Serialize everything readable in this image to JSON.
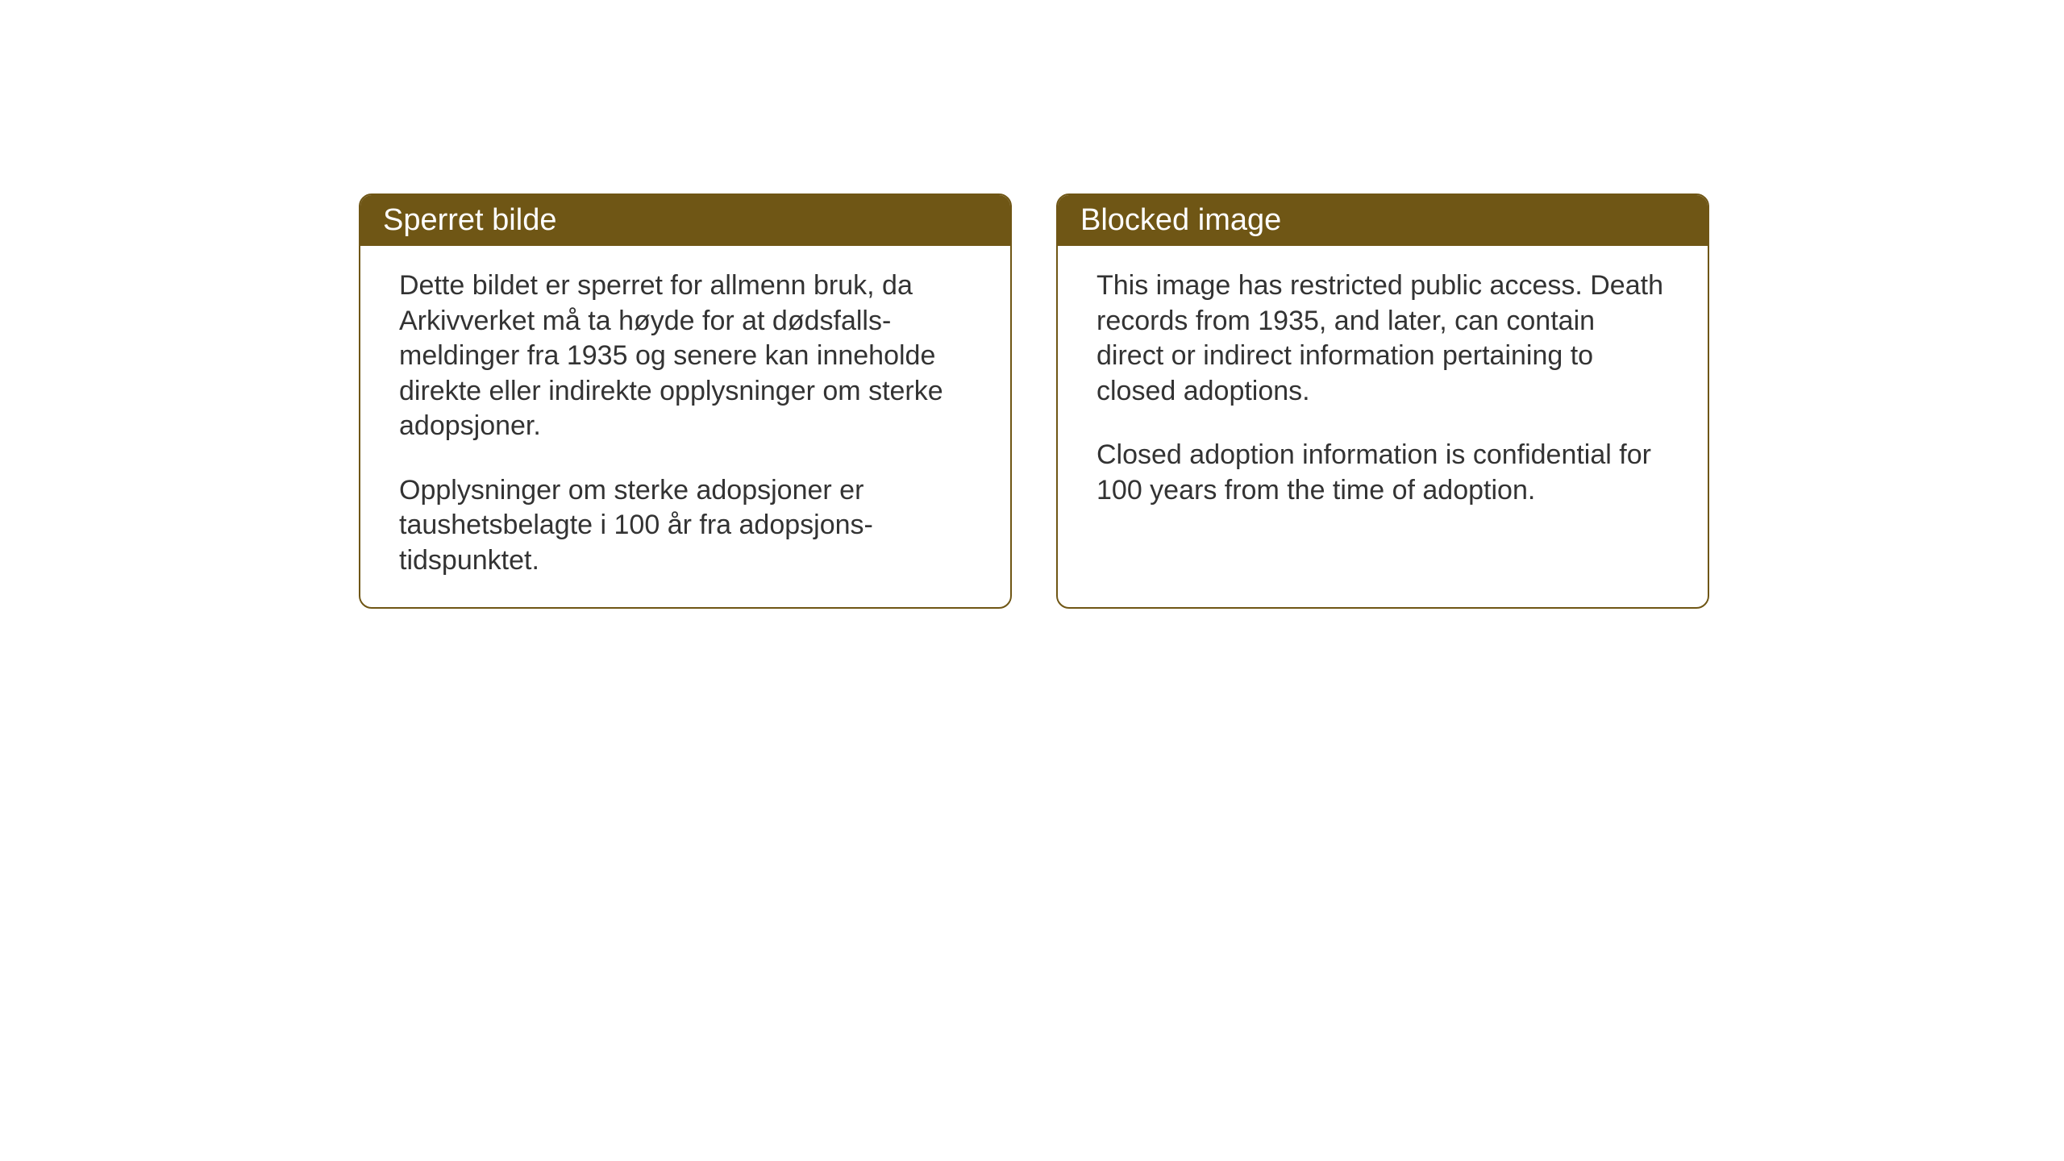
{
  "cards": [
    {
      "title": "Sperret bilde",
      "paragraph1": "Dette bildet er sperret for allmenn bruk, da Arkivverket må ta høyde for at dødsfalls-meldinger fra 1935 og senere kan inneholde direkte eller indirekte opplysninger om sterke adopsjoner.",
      "paragraph2": "Opplysninger om sterke adopsjoner er taushetsbelagte i 100 år fra adopsjons-tidspunktet."
    },
    {
      "title": "Blocked image",
      "paragraph1": "This image has restricted public access. Death records from 1935, and later, can contain direct or indirect information pertaining to closed adoptions.",
      "paragraph2": "Closed adoption information is confidential for 100 years from the time of adoption."
    }
  ],
  "style": {
    "header_background": "#6f5615",
    "header_text_color": "#ffffff",
    "border_color": "#6f5615",
    "body_background": "#ffffff",
    "body_text_color": "#333333",
    "title_fontsize": 38,
    "body_fontsize": 34,
    "border_radius": 16,
    "border_width": 2
  }
}
